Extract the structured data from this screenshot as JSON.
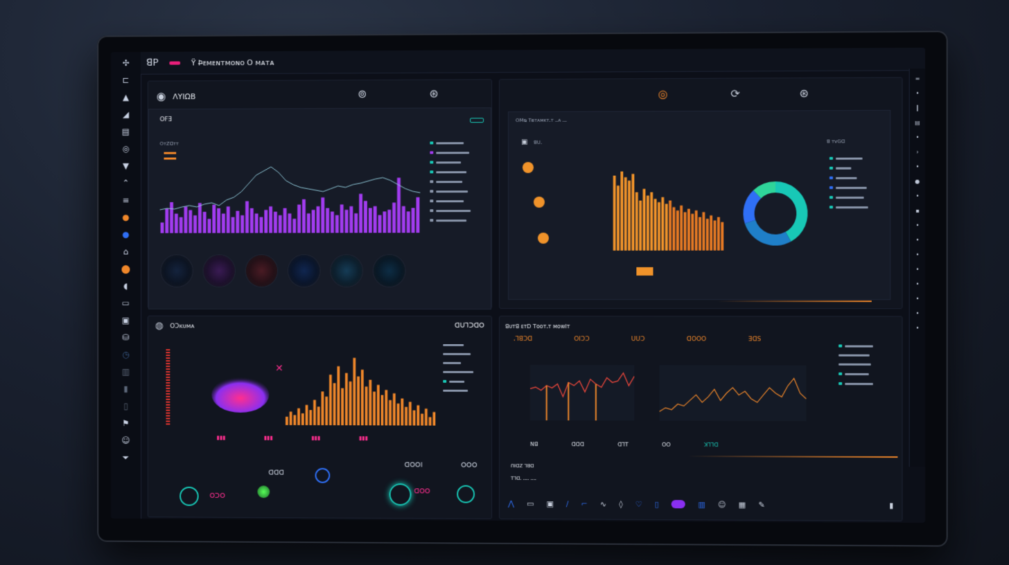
{
  "topbar": {
    "logo_text": "ꓭꓑ",
    "title": "Ϋ Ϸ̶ᴇᴍᴇɴᴛᴍᴏɴᴏ Ο ᴍᴀᴛᴀ"
  },
  "panel_tl": {
    "title": "ΛΥΙΩΒ",
    "subtitle": "ꓳꓝꓱ",
    "chart_label": "ꓳᴛꓜꓷᴛᴛ"
  },
  "panel_tr": {
    "header": "ꓳꓟᴓ ꓔᴃᴛᴀᴍᴋᴛꓸᴛ ꓸꓸᴀ ꓸꓸꓸ",
    "chart_label": "ꓭꓴꓸ",
    "legend_title": "ꓭ ᴛᴠꓖꓷ"
  },
  "panel_bl": {
    "title": "ꓳꓛᴋᴜᴍᴀ",
    "header_right": "ꓷꓴꓶꓛꓷꓳ"
  },
  "panel_br": {
    "title": "ꓭᴜᴛꓭ ᴇᴛꓓ ꓔᴏᴏᴛꓸᴛ ᴍᴏᴡꓲᴛ",
    "orange_values": [
      "ꓸꓶꓭꓛꓷ",
      "ꓳꓲꓛꓛ",
      "ꓴꓴꓛ",
      "ꓷꓳꓳꓳ",
      "ꓱꓷꓢ"
    ],
    "axis_values": [
      "ꓠꓭ",
      "ꓷꓷꓷ",
      "ꓷꓶꓔ",
      "ꓳꓳ",
      "ꓘꓶꓶꓷ"
    ],
    "footer_a": "ꓵꓲꓷꓜ ꓶꓭꓷ",
    "footer_b": "ꓔꓶꓷꓸ ꓸꓸꓸꓸ ꓸꓸꓸꓸ"
  },
  "bottom_stats": {
    "a": "ꓳꓛꓳ",
    "b": "ꓷꓷꓷ",
    "c": "ꓷꓳꓳꓲ",
    "d": "ꓷꓳꓳ",
    "e": "ꓳꓳꓳ"
  },
  "colors": {
    "purple": "#a23cf0",
    "orange": "#f0872a",
    "teal": "#18c8b6",
    "magenta": "#ff2e8f",
    "blue": "#2f6ff5"
  },
  "chart_data": [
    {
      "type": "bar",
      "values": [
        12,
        28,
        35,
        22,
        18,
        30,
        26,
        20,
        34,
        24,
        16,
        32,
        28,
        22,
        30,
        18,
        25,
        20,
        36,
        28,
        22,
        18,
        26,
        30,
        24,
        20,
        28,
        22,
        16,
        32,
        38,
        22,
        26,
        30,
        40,
        28,
        24,
        20,
        32,
        26,
        30,
        22,
        44,
        36,
        28,
        30,
        20,
        24,
        26,
        34,
        62,
        30,
        24,
        28,
        40
      ],
      "line": [
        34,
        36,
        35,
        38,
        40,
        38,
        42,
        44,
        40,
        48,
        52,
        60,
        72,
        84,
        90,
        96,
        88,
        76,
        70,
        66,
        64,
        62,
        60,
        64,
        68,
        66,
        70,
        72,
        75,
        78,
        80,
        76,
        70,
        64,
        60,
        58
      ]
    },
    {
      "type": "bar",
      "values": [
        90,
        78,
        95,
        88,
        84,
        92,
        70,
        60,
        74,
        66,
        70,
        62,
        58,
        64,
        56,
        60,
        52,
        48,
        54,
        46,
        50,
        44,
        48,
        40,
        46,
        38,
        42,
        36,
        40,
        34
      ]
    },
    {
      "type": "pie",
      "values": [
        42,
        28,
        18,
        12
      ]
    },
    {
      "type": "bar",
      "values": [
        10,
        16,
        12,
        20,
        14,
        24,
        18,
        30,
        22,
        40,
        34,
        60,
        50,
        70,
        44,
        62,
        52,
        80,
        58,
        66,
        46,
        54,
        40,
        48,
        36,
        42,
        30,
        38,
        26,
        32,
        22,
        28,
        18,
        24,
        14,
        20,
        10,
        16
      ]
    },
    {
      "type": "line",
      "values": [
        40,
        42,
        38,
        44,
        41,
        46,
        30,
        48,
        44,
        50,
        36,
        52,
        46,
        42,
        54,
        48,
        50,
        60,
        44,
        56
      ]
    },
    {
      "type": "line",
      "values": [
        10,
        14,
        12,
        18,
        16,
        22,
        28,
        20,
        26,
        34,
        22,
        30,
        36,
        28,
        32,
        24,
        20,
        28,
        36,
        30,
        26,
        38,
        46,
        30,
        24
      ]
    }
  ]
}
